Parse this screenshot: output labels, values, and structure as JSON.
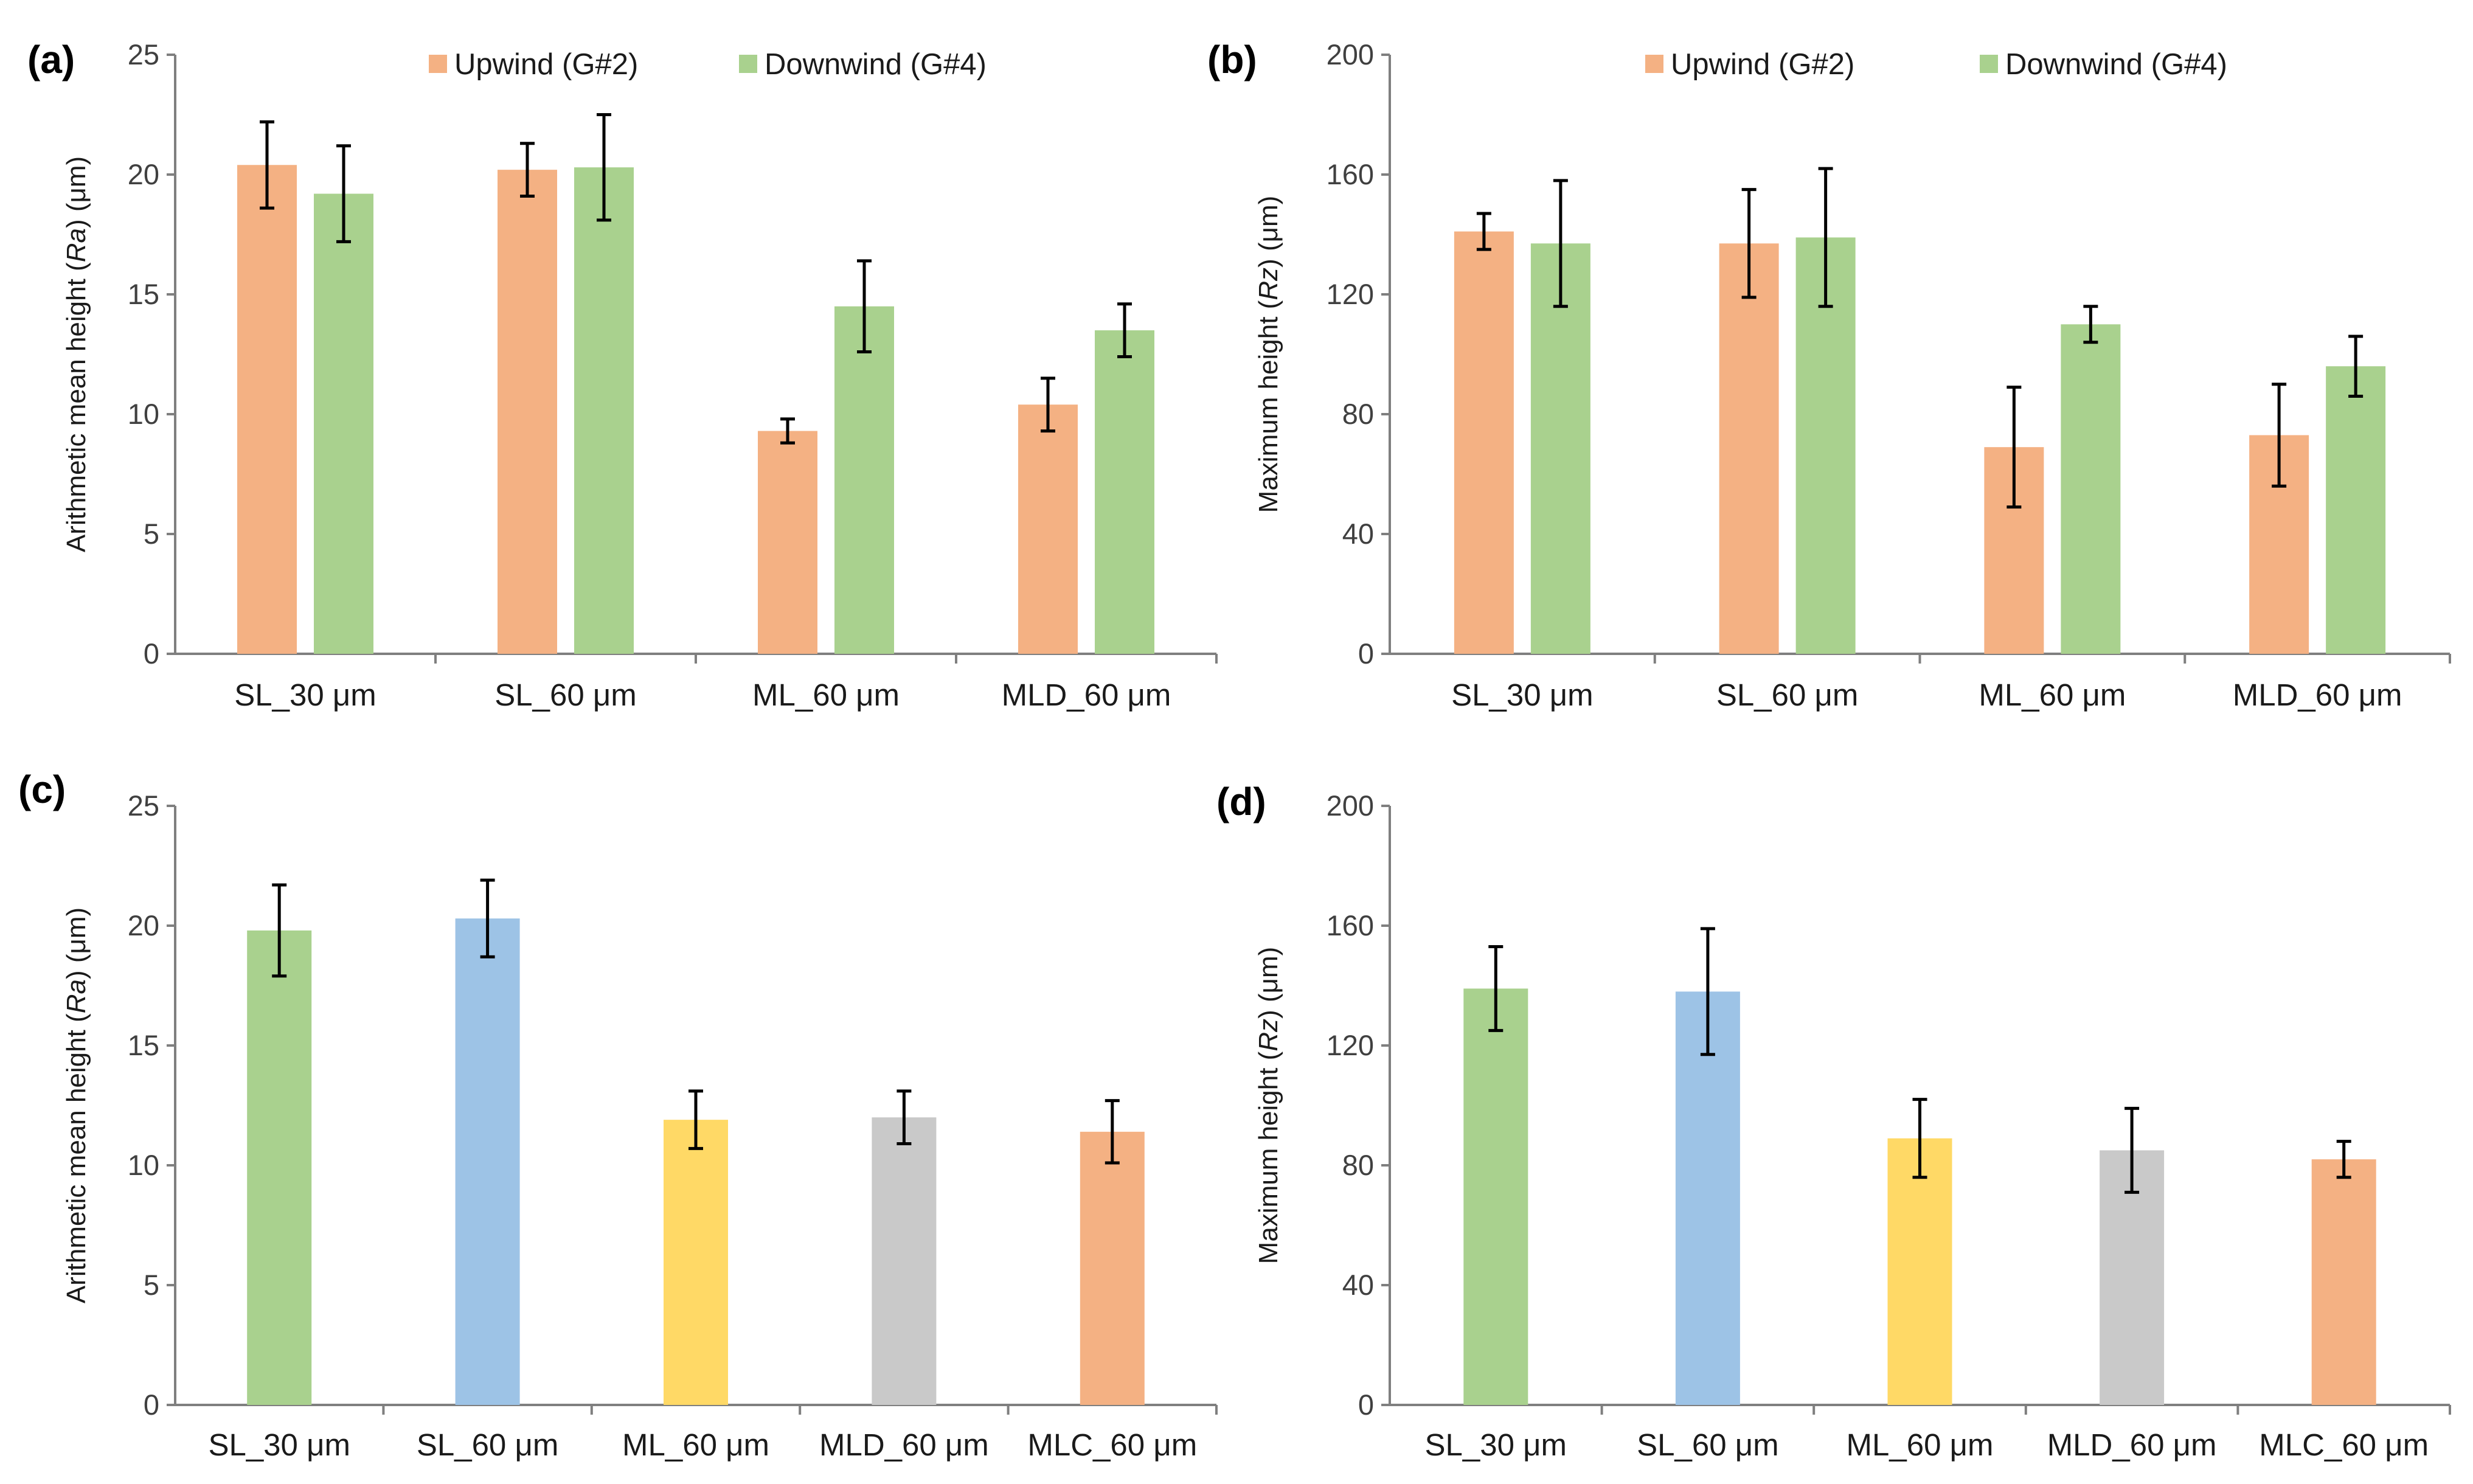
{
  "colors": {
    "upwind": "#F4B183",
    "downwind": "#A9D18E",
    "green": "#A9D18E",
    "blue": "#9DC3E6",
    "yellow": "#FFD966",
    "gray": "#C9C9C9",
    "orange": "#F4B183",
    "axis": "#7f7f7f",
    "errorbar": "#000000"
  },
  "chart_data": [
    {
      "panel": "(a)",
      "type": "bar",
      "ylabel_prefix": "Arithmetic mean height (",
      "ylabel_italic": "Ra",
      "ylabel_suffix": ") (μm)",
      "ylim": [
        0,
        25
      ],
      "yticks": [
        "0",
        "5",
        "10",
        "15",
        "20",
        "25"
      ],
      "categories": [
        "SL_30 μm",
        "SL_60 μm",
        "ML_60 μm",
        "MLD_60 μm"
      ],
      "series": [
        {
          "name": "Upwind (G#2)",
          "color_key": "upwind",
          "values": [
            20.4,
            20.2,
            9.3,
            10.4
          ],
          "errors": [
            1.8,
            1.1,
            0.5,
            1.1
          ]
        },
        {
          "name": "Downwind (G#4)",
          "color_key": "downwind",
          "values": [
            19.2,
            20.3,
            14.5,
            13.5
          ],
          "errors": [
            2.0,
            2.2,
            1.9,
            1.1
          ]
        }
      ],
      "legend": "top"
    },
    {
      "panel": "(b)",
      "type": "bar",
      "ylabel_prefix": "Maximum height (",
      "ylabel_italic": "Rz",
      "ylabel_suffix": ") (μm)",
      "ylim": [
        0,
        200
      ],
      "yticks": [
        "0",
        "40",
        "80",
        "120",
        "160",
        "200"
      ],
      "categories": [
        "SL_30 μm",
        "SL_60 μm",
        "ML_60 μm",
        "MLD_60 μm"
      ],
      "series": [
        {
          "name": "Upwind (G#2)",
          "color_key": "upwind",
          "values": [
            141,
            137,
            69,
            73
          ],
          "errors": [
            6,
            18,
            20,
            17
          ]
        },
        {
          "name": "Downwind (G#4)",
          "color_key": "downwind",
          "values": [
            137,
            139,
            110,
            96
          ],
          "errors": [
            21,
            23,
            6,
            10
          ]
        }
      ],
      "legend": "top"
    },
    {
      "panel": "(c)",
      "type": "bar",
      "ylabel_prefix": "Arithmetic mean height (",
      "ylabel_italic": "Ra",
      "ylabel_suffix": ") (μm)",
      "ylim": [
        0,
        25
      ],
      "yticks": [
        "0",
        "5",
        "10",
        "15",
        "20",
        "25"
      ],
      "categories": [
        "SL_30 μm",
        "SL_60 μm",
        "ML_60 μm",
        "MLD_60 μm",
        "MLC_60 μm"
      ],
      "series": [
        {
          "name": "",
          "color_keys": [
            "green",
            "blue",
            "yellow",
            "gray",
            "orange"
          ],
          "values": [
            19.8,
            20.3,
            11.9,
            12.0,
            11.4
          ],
          "errors": [
            1.9,
            1.6,
            1.2,
            1.1,
            1.3
          ]
        }
      ]
    },
    {
      "panel": "(d)",
      "type": "bar",
      "ylabel_prefix": "Maximum height (",
      "ylabel_italic": "Rz",
      "ylabel_suffix": ") (μm)",
      "ylim": [
        0,
        200
      ],
      "yticks": [
        "0",
        "40",
        "80",
        "120",
        "160",
        "200"
      ],
      "categories": [
        "SL_30 μm",
        "SL_60 μm",
        "ML_60 μm",
        "MLD_60 μm",
        "MLC_60 μm"
      ],
      "series": [
        {
          "name": "",
          "color_keys": [
            "green",
            "blue",
            "yellow",
            "gray",
            "orange"
          ],
          "values": [
            139,
            138,
            89,
            85,
            82
          ],
          "errors": [
            14,
            21,
            13,
            14,
            6
          ]
        }
      ]
    }
  ]
}
